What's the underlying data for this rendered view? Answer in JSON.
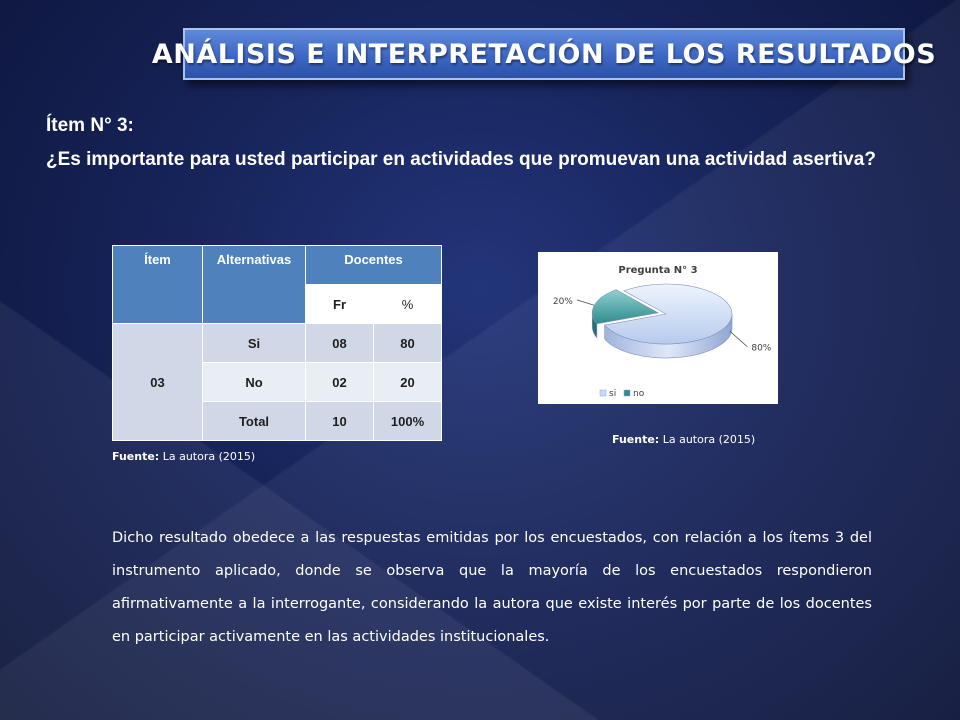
{
  "slide": {
    "title": "ANÁLISIS E INTERPRETACIÓN DE LOS RESULTADOS",
    "item_heading": "Ítem N° 3:",
    "question": "¿Es importante para usted participar en actividades que promuevan una actividad asertiva?"
  },
  "table": {
    "headers": {
      "item": "Ítem",
      "alternatives": "Alternativas",
      "teachers": "Docentes",
      "fr": "Fr",
      "pct": "%"
    },
    "item_number": "03",
    "rows": [
      {
        "alternative": "Si",
        "fr": "08",
        "pct": "80"
      },
      {
        "alternative": "No",
        "fr": "02",
        "pct": "20"
      },
      {
        "alternative": "Total",
        "fr": "10",
        "pct": "100%"
      }
    ]
  },
  "sources": {
    "label": "Fuente:",
    "table_source": "La autora (2015)",
    "chart_source": "La autora (2015)"
  },
  "chart_data": {
    "type": "pie",
    "title": "Pregunta N° 3",
    "categories": [
      "si",
      "no"
    ],
    "values": [
      80,
      20
    ],
    "data_labels": [
      "80%",
      "20%"
    ],
    "colors": [
      "#c9daf8",
      "#2f8c8c"
    ],
    "legend_position": "bottom-left",
    "style": "3d-exploded"
  },
  "analysis": {
    "text": "Dicho resultado obedece a las respuestas emitidas por los encuestados, con relación a los ítems 3 del instrumento aplicado, donde se observa que la mayoría de los encuestados respondieron afirmativamente a la interrogante, considerando la autora que existe interés por parte de los docentes en participar activamente en las actividades institucionales."
  }
}
